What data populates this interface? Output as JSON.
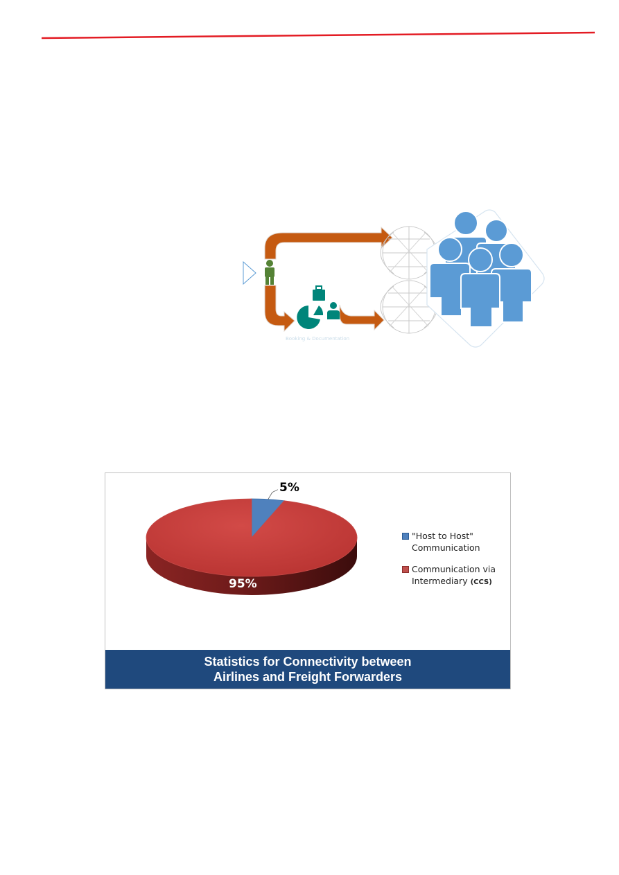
{
  "page": {
    "header_rule_color": "#e31b23"
  },
  "diagram": {
    "caption": "Booking & Documentation",
    "icons": [
      "play-triangle-icon",
      "person-icon",
      "pie-chart-icon",
      "briefcase-icon",
      "user-icon",
      "globe-icon",
      "people-group-icon"
    ],
    "colors": {
      "arrow": "#c55a11",
      "person": "#548235",
      "teal": "#00857a",
      "people": "#5b9bd5"
    }
  },
  "chart": {
    "title_line1": "Statistics for Connectivity between",
    "title_line2": "Airlines and Freight Forwarders",
    "legend": [
      {
        "label_line1": "\"Host to Host\"",
        "label_line2": "Communication",
        "color": "#4f81bd"
      },
      {
        "label_line1": "Communication via",
        "label_line2": "Intermediary",
        "label_suffix": "(CCS)",
        "color": "#c0504d"
      }
    ]
  },
  "chart_data": {
    "type": "pie",
    "title": "Statistics for Connectivity between Airlines and Freight Forwarders",
    "slices": [
      {
        "name": "\"Host to Host\" Communication",
        "value": 5,
        "label": "5%",
        "color": "#4f81bd"
      },
      {
        "name": "Communication via Intermediary (CCS)",
        "value": 95,
        "label": "95%",
        "color": "#c0504d"
      }
    ],
    "legend_position": "right",
    "style": "3d"
  }
}
